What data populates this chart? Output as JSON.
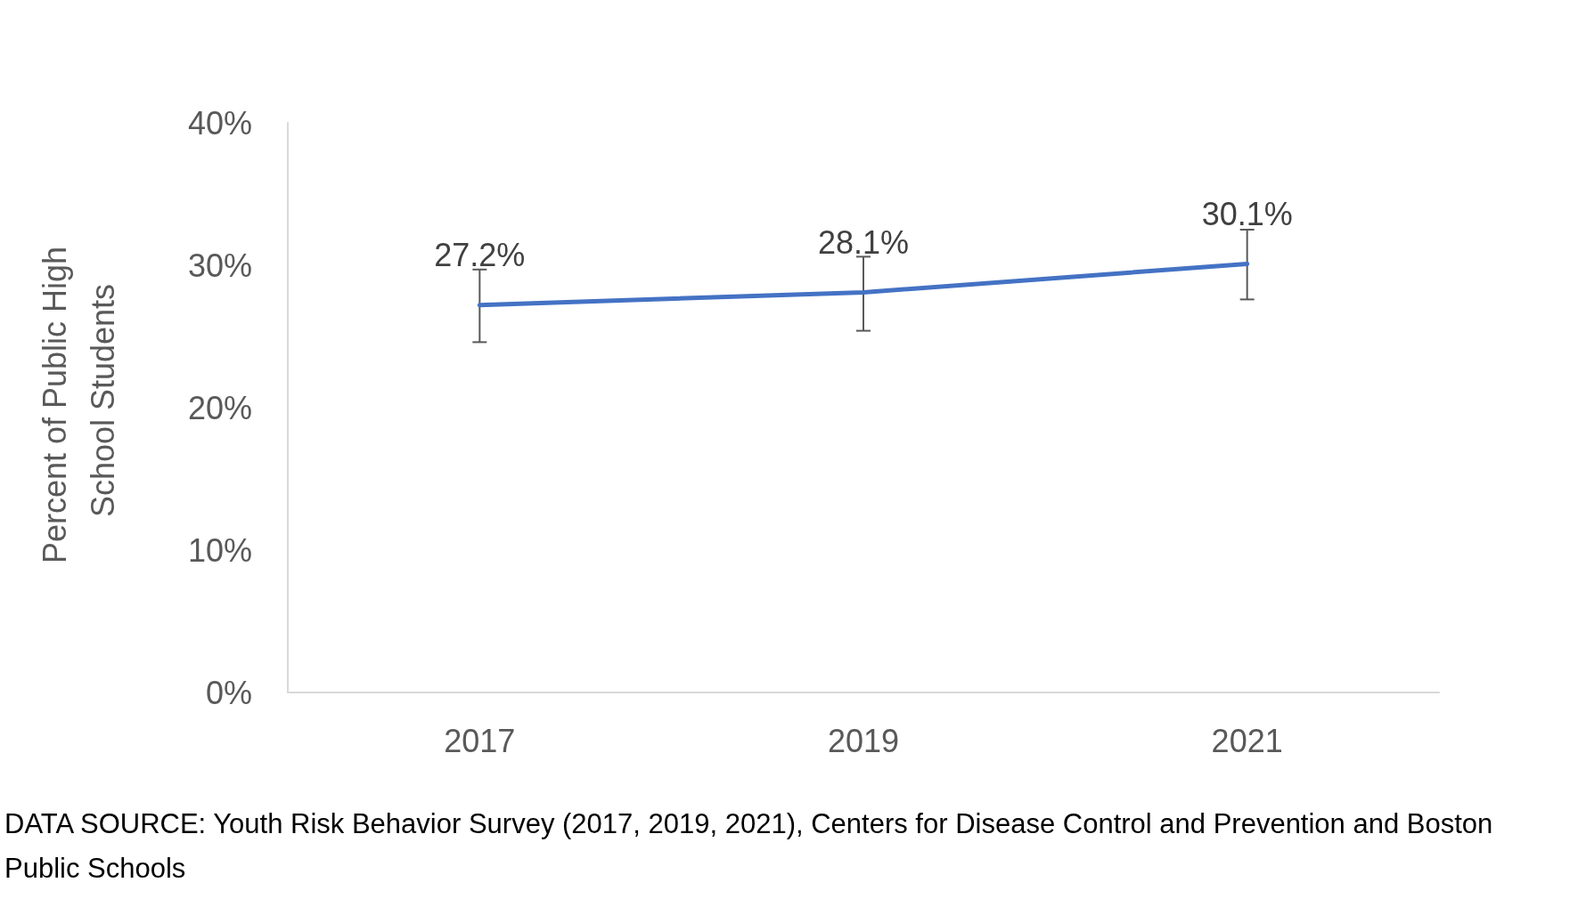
{
  "chart_data": {
    "type": "line",
    "ylabel": "Percent of Public High School Students",
    "categories": [
      "2017",
      "2019",
      "2021"
    ],
    "series": [
      {
        "color": "#4472c4",
        "values": [
          27.2,
          28.1,
          30.1
        ],
        "value_labels": [
          "27.2%",
          "28.1%",
          "30.1%"
        ],
        "errors": [
          [
            24.6,
            29.7
          ],
          [
            25.4,
            30.6
          ],
          [
            27.6,
            32.5
          ]
        ]
      }
    ],
    "ylim": [
      0,
      40
    ],
    "yticks": [
      {
        "value": 0,
        "label": "0%"
      },
      {
        "value": 10,
        "label": "10%"
      },
      {
        "value": 20,
        "label": "20%"
      },
      {
        "value": 30,
        "label": "30%"
      },
      {
        "value": 40,
        "label": "40%"
      }
    ],
    "grid": false,
    "marker": "none",
    "line_style": "solid",
    "annotations": [
      "DATA SOURCE: Youth Risk Behavior Survey (2017, 2019, 2021), Centers for Disease Control and Prevention and Boston Public Schools"
    ]
  }
}
